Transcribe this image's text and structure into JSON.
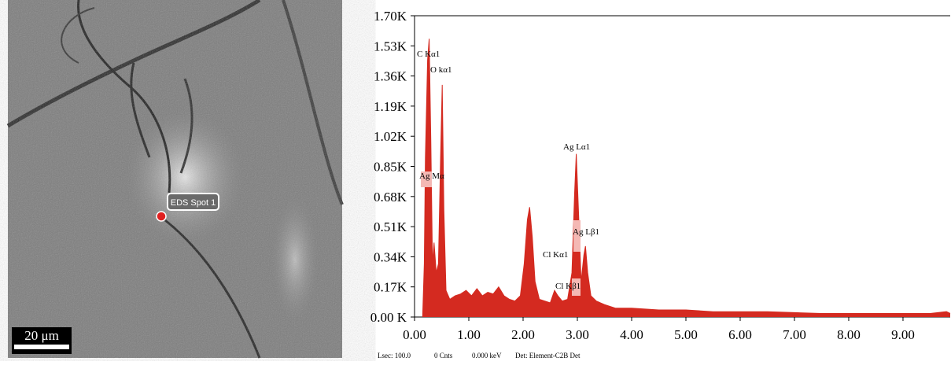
{
  "chart_data": {
    "type": "area",
    "color": "#d42a20",
    "x": [
      0.15,
      0.18,
      0.2,
      0.24,
      0.27,
      0.3,
      0.33,
      0.36,
      0.4,
      0.44,
      0.48,
      0.51,
      0.54,
      0.58,
      0.65,
      0.75,
      0.85,
      0.95,
      1.05,
      1.15,
      1.25,
      1.35,
      1.45,
      1.55,
      1.65,
      1.75,
      1.85,
      1.95,
      2.02,
      2.08,
      2.12,
      2.17,
      2.22,
      2.3,
      2.4,
      2.5,
      2.58,
      2.64,
      2.72,
      2.82,
      2.9,
      2.95,
      2.98,
      3.02,
      3.07,
      3.12,
      3.15,
      3.19,
      3.25,
      3.35,
      3.5,
      3.7,
      4.0,
      4.5,
      5.0,
      5.5,
      6.0,
      6.5,
      7.0,
      7.5,
      8.0,
      8.5,
      9.0,
      9.5,
      9.8,
      9.87
    ],
    "values": [
      0,
      0.3,
      0.9,
      1.45,
      1.57,
      1.0,
      0.3,
      0.42,
      0.25,
      0.3,
      0.9,
      1.31,
      0.6,
      0.15,
      0.1,
      0.12,
      0.13,
      0.15,
      0.12,
      0.16,
      0.12,
      0.14,
      0.13,
      0.17,
      0.12,
      0.1,
      0.09,
      0.12,
      0.3,
      0.55,
      0.62,
      0.45,
      0.2,
      0.1,
      0.09,
      0.08,
      0.15,
      0.12,
      0.09,
      0.1,
      0.25,
      0.7,
      0.92,
      0.6,
      0.2,
      0.35,
      0.4,
      0.25,
      0.12,
      0.09,
      0.07,
      0.05,
      0.05,
      0.04,
      0.04,
      0.03,
      0.03,
      0.03,
      0.025,
      0.02,
      0.02,
      0.02,
      0.02,
      0.02,
      0.03,
      0.02
    ],
    "xlim": [
      0,
      9.87
    ],
    "ylim": [
      0,
      1.7
    ],
    "xticks": [
      {
        "value": 0,
        "label": "0.00"
      },
      {
        "value": 1,
        "label": "1.00"
      },
      {
        "value": 2,
        "label": "2.00"
      },
      {
        "value": 3,
        "label": "3.00"
      },
      {
        "value": 4,
        "label": "4.00"
      },
      {
        "value": 5,
        "label": "5.00"
      },
      {
        "value": 6,
        "label": "6.00"
      },
      {
        "value": 7,
        "label": "7.00"
      },
      {
        "value": 8,
        "label": "8.00"
      },
      {
        "value": 9,
        "label": "9.00"
      }
    ],
    "yticks": [
      {
        "value": 0,
        "label": "0.00 K"
      },
      {
        "value": 0.17,
        "label": "0.17K"
      },
      {
        "value": 0.34,
        "label": "0.34K"
      },
      {
        "value": 0.51,
        "label": "0.51K"
      },
      {
        "value": 0.68,
        "label": "0.68K"
      },
      {
        "value": 0.85,
        "label": "0.85K"
      },
      {
        "value": 1.02,
        "label": "1.02K"
      },
      {
        "value": 1.19,
        "label": "1.19K"
      },
      {
        "value": 1.36,
        "label": "1.36K"
      },
      {
        "value": 1.53,
        "label": "1.53K"
      },
      {
        "value": 1.7,
        "label": "1.70K"
      }
    ],
    "annotations": [
      "C Kα1",
      "O kα1",
      "Ag Mα",
      "Ag Lα1",
      "Ag Lβ1",
      "Cl Kα1",
      "Cl Kβ1"
    ],
    "footer": [
      "Lsec: 100.0",
      "0 Cnts",
      "0.000 keV",
      "Det: Element-C2B Det"
    ]
  },
  "image": {
    "spot_label": "EDS Spot 1",
    "scale_bar": "20 μm"
  }
}
